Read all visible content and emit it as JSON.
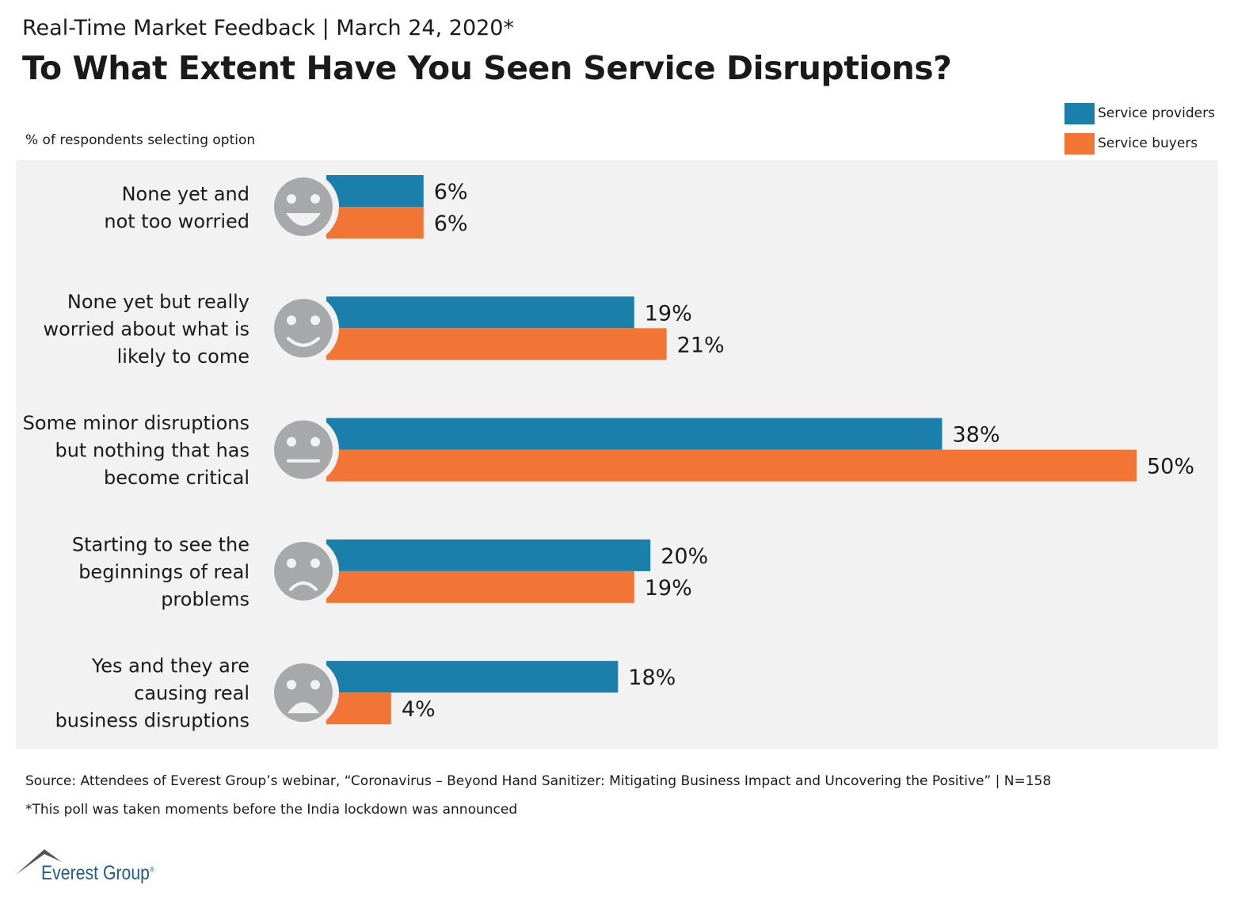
{
  "chart_data": {
    "type": "bar",
    "orientation": "horizontal",
    "subtitle": "Real-Time Market Feedback | March 24, 2020*",
    "title": "To What Extent Have You Seen Service Disruptions?",
    "ylabel": "% of respondents selecting option",
    "categories": [
      "None yet and\nnot too worried",
      "None yet but really\nworried about what is\nlikely to come",
      "Some minor disruptions\nbut nothing that has\nbecome critical",
      "Starting to see the\nbeginnings of real\nproblems",
      "Yes and they are\ncausing real\nbusiness disruptions"
    ],
    "category_icons": [
      "big-smile-face-icon",
      "smile-face-icon",
      "neutral-face-icon",
      "frown-face-icon",
      "sad-face-icon"
    ],
    "series": [
      {
        "name": "Service providers",
        "color": "#1a80ab",
        "values": [
          6,
          19,
          38,
          20,
          18
        ]
      },
      {
        "name": "Service buyers",
        "color": "#f37535",
        "values": [
          6,
          21,
          50,
          19,
          4
        ]
      }
    ],
    "value_suffix": "%",
    "xlim": [
      0,
      50
    ],
    "grid": false,
    "legend_position": "top-right"
  },
  "footer": {
    "source": "Source: Attendees of Everest Group’s webinar, “Coronavirus – Beyond Hand Sanitizer: Mitigating Business Impact and Uncovering the Positive” | N=158",
    "note": "*This poll was taken moments before the India lockdown was announced"
  },
  "logo": {
    "text": "Everest Group"
  }
}
